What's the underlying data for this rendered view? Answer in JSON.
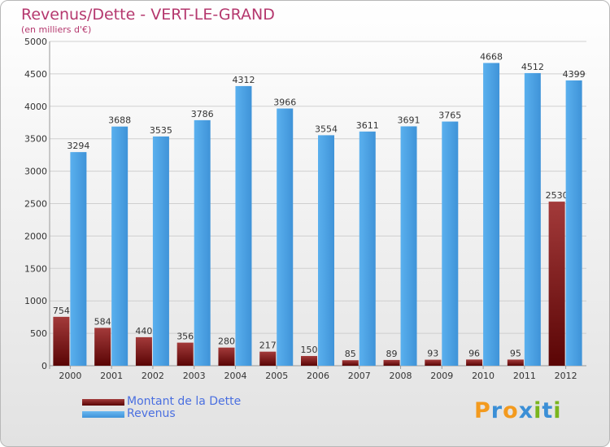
{
  "chart_data": {
    "type": "bar",
    "title": "Revenus/Dette - VERT-LE-GRAND",
    "subtitle": "(en milliers d'€)",
    "categories": [
      "2000",
      "2001",
      "2002",
      "2003",
      "2004",
      "2005",
      "2006",
      "2007",
      "2008",
      "2009",
      "2010",
      "2011",
      "2012"
    ],
    "series": [
      {
        "name": "Montant de la Dette",
        "color": "#7a1313",
        "values": [
          754,
          584,
          440,
          356,
          280,
          217,
          150,
          85,
          89,
          93,
          96,
          95,
          2530
        ]
      },
      {
        "name": "Revenus",
        "color": "#4fa3e4",
        "values": [
          3294,
          3688,
          3535,
          3786,
          4312,
          3966,
          3554,
          3611,
          3691,
          3765,
          4668,
          4512,
          4399
        ]
      }
    ],
    "ylim": [
      0,
      5000
    ],
    "yticks": [
      0,
      500,
      1000,
      1500,
      2000,
      2500,
      3000,
      3500,
      4000,
      4500,
      5000
    ],
    "grid": true,
    "legend": "bottom-left"
  },
  "logo": {
    "text": "Proxiti",
    "colors": [
      "#f39a1e",
      "#3b8fd6",
      "#f39a1e",
      "#3b8fd6",
      "#7ab51d",
      "#3b8fd6",
      "#7ab51d"
    ]
  }
}
